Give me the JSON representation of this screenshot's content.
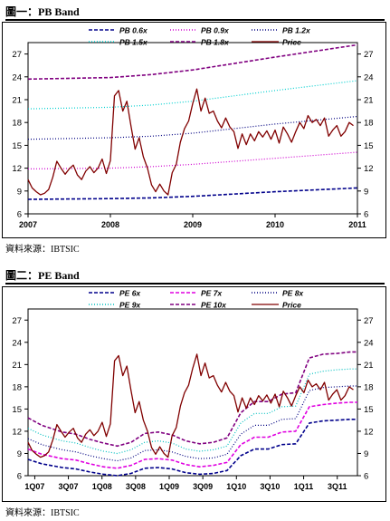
{
  "figure1": {
    "title": "圖一：PB Band",
    "source": "資料來源：IBTSIC",
    "chart_data": {
      "type": "line",
      "x_tick_labels": [
        "2007",
        "2008",
        "2009",
        "2010",
        "2011"
      ],
      "x_range": [
        2007.0,
        2011.0
      ],
      "ylim": [
        6,
        28.5
      ],
      "y_ticks": [
        6,
        9,
        12,
        15,
        18,
        21,
        24,
        27
      ],
      "legend": [
        "PB 0.6x",
        "PB 0.9x",
        "PB 1.2x",
        "PB 1.5x",
        "PB 1.8x",
        "Price"
      ],
      "series": [
        {
          "name": "PB 0.6x",
          "color": "#00008b",
          "style": "dash",
          "x": [
            2007.0,
            2008.0,
            2008.5,
            2009.0,
            2010.0,
            2011.0
          ],
          "y": [
            7.9,
            8.0,
            8.1,
            8.3,
            8.9,
            9.4
          ]
        },
        {
          "name": "PB 0.9x",
          "color": "#d000d0",
          "style": "dot",
          "x": [
            2007.0,
            2008.0,
            2008.5,
            2009.0,
            2010.0,
            2011.0
          ],
          "y": [
            11.9,
            12.0,
            12.2,
            12.5,
            13.3,
            14.1
          ]
        },
        {
          "name": "PB 1.2x",
          "color": "#000080",
          "style": "dot",
          "x": [
            2007.0,
            2008.0,
            2008.5,
            2009.0,
            2010.0,
            2011.0
          ],
          "y": [
            15.8,
            16.0,
            16.2,
            16.6,
            17.8,
            18.8
          ]
        },
        {
          "name": "PB 1.5x",
          "color": "#00d0d0",
          "style": "dot",
          "x": [
            2007.0,
            2008.0,
            2008.5,
            2009.0,
            2010.0,
            2011.0
          ],
          "y": [
            19.8,
            20.0,
            20.3,
            20.8,
            22.2,
            23.5
          ]
        },
        {
          "name": "PB 1.8x",
          "color": "#800080",
          "style": "dash",
          "x": [
            2007.0,
            2008.0,
            2008.5,
            2009.0,
            2010.0,
            2011.0
          ],
          "y": [
            23.7,
            23.9,
            24.3,
            24.9,
            26.6,
            28.2
          ]
        },
        {
          "name": "Price",
          "color": "#800000",
          "style": "solid",
          "x": [
            2007.0,
            2007.05,
            2007.1,
            2007.15,
            2007.2,
            2007.25,
            2007.3,
            2007.35,
            2007.4,
            2007.45,
            2007.5,
            2007.55,
            2007.6,
            2007.65,
            2007.7,
            2007.75,
            2007.8,
            2007.85,
            2007.9,
            2007.95,
            2008.0,
            2008.05,
            2008.1,
            2008.15,
            2008.2,
            2008.25,
            2008.3,
            2008.35,
            2008.4,
            2008.45,
            2008.5,
            2008.55,
            2008.6,
            2008.65,
            2008.7,
            2008.75,
            2008.8,
            2008.85,
            2008.9,
            2008.95,
            2009.0,
            2009.05,
            2009.1,
            2009.15,
            2009.2,
            2009.25,
            2009.3,
            2009.35,
            2009.4,
            2009.45,
            2009.5,
            2009.55,
            2009.6,
            2009.65,
            2009.7,
            2009.75,
            2009.8,
            2009.85,
            2009.9,
            2009.95,
            2010.0,
            2010.05,
            2010.1,
            2010.15,
            2010.2,
            2010.25,
            2010.3,
            2010.35,
            2010.4,
            2010.45,
            2010.5,
            2010.55,
            2010.6,
            2010.65,
            2010.7,
            2010.75,
            2010.8,
            2010.85,
            2010.9,
            2010.95
          ],
          "y": [
            10.5,
            9.4,
            8.9,
            8.5,
            8.7,
            9.2,
            10.8,
            12.9,
            12.0,
            11.2,
            11.9,
            12.4,
            11.1,
            10.5,
            11.6,
            12.2,
            11.4,
            12.0,
            13.2,
            11.3,
            13.0,
            21.5,
            22.2,
            19.5,
            20.8,
            17.5,
            14.5,
            16.0,
            13.5,
            12.0,
            9.8,
            8.9,
            9.9,
            9.0,
            8.5,
            11.4,
            12.5,
            15.4,
            17.2,
            18.2,
            20.5,
            22.4,
            19.5,
            21.2,
            19.2,
            19.5,
            18.2,
            17.3,
            18.6,
            17.4,
            16.8,
            14.6,
            16.5,
            15.1,
            16.5,
            15.6,
            16.8,
            16.1,
            16.9,
            15.8,
            17.0,
            15.3,
            17.4,
            16.5,
            15.4,
            16.8,
            18.0,
            17.2,
            18.9,
            18.0,
            18.4,
            17.6,
            18.6,
            16.2,
            17.0,
            17.6,
            16.2,
            16.8,
            18.0,
            17.6
          ]
        }
      ]
    }
  },
  "figure2": {
    "title": "圖二：PE Band",
    "source": "資料來源：IBTSIC",
    "chart_data": {
      "type": "line",
      "x_tick_labels": [
        "1Q07",
        "3Q07",
        "1Q08",
        "3Q08",
        "1Q09",
        "3Q09",
        "1Q10",
        "3Q10",
        "1Q11",
        "3Q11"
      ],
      "x_range": [
        2007.0,
        2011.8
      ],
      "ylim": [
        6,
        28.5
      ],
      "y_ticks": [
        6,
        9,
        12,
        15,
        18,
        21,
        24,
        27
      ],
      "legend": [
        "PE 6x",
        "PE 7x",
        "PE 8x",
        "PE 9x",
        "PE 10x",
        "Price"
      ],
      "series": [
        {
          "name": "PE 6x",
          "color": "#00008b",
          "style": "dash",
          "x": [
            2007.0,
            2007.2,
            2007.5,
            2007.7,
            2007.9,
            2008.1,
            2008.3,
            2008.5,
            2008.7,
            2008.9,
            2009.1,
            2009.3,
            2009.5,
            2009.7,
            2009.9,
            2010.1,
            2010.3,
            2010.5,
            2010.7,
            2010.9,
            2011.1,
            2011.3,
            2011.5,
            2011.7,
            2011.8
          ],
          "y": [
            8.2,
            7.6,
            7.1,
            6.9,
            6.5,
            6.2,
            6.0,
            6.3,
            7.0,
            7.1,
            6.9,
            6.4,
            6.2,
            6.3,
            6.7,
            8.7,
            9.6,
            9.6,
            10.2,
            10.3,
            13.1,
            13.4,
            13.5,
            13.6,
            13.6
          ]
        },
        {
          "name": "PE 7x",
          "color": "#e000e0",
          "style": "dash",
          "x": [
            2007.0,
            2007.2,
            2007.5,
            2007.7,
            2007.9,
            2008.1,
            2008.3,
            2008.5,
            2008.7,
            2008.9,
            2009.1,
            2009.3,
            2009.5,
            2009.7,
            2009.9,
            2010.1,
            2010.3,
            2010.5,
            2010.7,
            2010.9,
            2011.1,
            2011.3,
            2011.5,
            2011.7,
            2011.8
          ],
          "y": [
            9.6,
            8.9,
            8.3,
            8.1,
            7.6,
            7.2,
            7.0,
            7.4,
            8.2,
            8.3,
            8.1,
            7.5,
            7.2,
            7.4,
            7.8,
            10.2,
            11.2,
            11.2,
            11.9,
            12.0,
            15.3,
            15.6,
            15.8,
            15.9,
            15.9
          ]
        },
        {
          "name": "PE 8x",
          "color": "#000080",
          "style": "dot",
          "x": [
            2007.0,
            2007.2,
            2007.5,
            2007.7,
            2007.9,
            2008.1,
            2008.3,
            2008.5,
            2008.7,
            2008.9,
            2009.1,
            2009.3,
            2009.5,
            2009.7,
            2009.9,
            2010.1,
            2010.3,
            2010.5,
            2010.7,
            2010.9,
            2011.1,
            2011.3,
            2011.5,
            2011.7,
            2011.8
          ],
          "y": [
            11.0,
            10.2,
            9.5,
            9.2,
            8.7,
            8.3,
            8.0,
            8.4,
            9.4,
            9.5,
            9.2,
            8.6,
            8.3,
            8.4,
            8.9,
            11.6,
            12.8,
            12.8,
            13.6,
            13.7,
            17.5,
            17.9,
            18.0,
            18.1,
            18.1
          ]
        },
        {
          "name": "PE 9x",
          "color": "#00c0c0",
          "style": "dot",
          "x": [
            2007.0,
            2007.2,
            2007.5,
            2007.7,
            2007.9,
            2008.1,
            2008.3,
            2008.5,
            2008.7,
            2008.9,
            2009.1,
            2009.3,
            2009.5,
            2009.7,
            2009.9,
            2010.1,
            2010.3,
            2010.5,
            2010.7,
            2010.9,
            2011.1,
            2011.3,
            2011.5,
            2011.7,
            2011.8
          ],
          "y": [
            12.4,
            11.5,
            10.7,
            10.4,
            9.8,
            9.3,
            9.0,
            9.5,
            10.5,
            10.7,
            10.4,
            9.6,
            9.3,
            9.5,
            10.0,
            13.1,
            14.4,
            14.4,
            15.3,
            15.4,
            19.7,
            20.1,
            20.3,
            20.4,
            20.4
          ]
        },
        {
          "name": "PE 10x",
          "color": "#800080",
          "style": "dash",
          "x": [
            2007.0,
            2007.2,
            2007.5,
            2007.7,
            2007.9,
            2008.1,
            2008.3,
            2008.5,
            2008.7,
            2008.9,
            2009.1,
            2009.3,
            2009.5,
            2009.7,
            2009.9,
            2010.1,
            2010.3,
            2010.5,
            2010.7,
            2010.9,
            2011.1,
            2011.3,
            2011.5,
            2011.7,
            2011.8
          ],
          "y": [
            13.8,
            12.8,
            11.9,
            11.6,
            10.9,
            10.4,
            10.0,
            10.5,
            11.7,
            11.9,
            11.5,
            10.7,
            10.3,
            10.5,
            11.1,
            14.5,
            16.0,
            16.0,
            17.0,
            17.2,
            21.9,
            22.4,
            22.5,
            22.7,
            22.7
          ]
        },
        {
          "name": "Price",
          "color": "#800000",
          "style": "solid",
          "x": [
            2007.0,
            2007.06,
            2007.12,
            2007.18,
            2007.24,
            2007.3,
            2007.36,
            2007.42,
            2007.48,
            2007.54,
            2007.6,
            2007.66,
            2007.72,
            2007.78,
            2007.84,
            2007.9,
            2007.96,
            2008.02,
            2008.08,
            2008.14,
            2008.2,
            2008.26,
            2008.32,
            2008.38,
            2008.44,
            2008.5,
            2008.56,
            2008.62,
            2008.68,
            2008.74,
            2008.8,
            2008.86,
            2008.92,
            2008.98,
            2009.04,
            2009.1,
            2009.16,
            2009.22,
            2009.28,
            2009.34,
            2009.4,
            2009.46,
            2009.52,
            2009.58,
            2009.64,
            2009.7,
            2009.76,
            2009.82,
            2009.88,
            2009.94,
            2010.0,
            2010.06,
            2010.12,
            2010.18,
            2010.24,
            2010.3,
            2010.36,
            2010.42,
            2010.48,
            2010.54,
            2010.6,
            2010.66,
            2010.72,
            2010.78,
            2010.84,
            2010.9,
            2010.96,
            2011.02,
            2011.08,
            2011.14,
            2011.2,
            2011.26,
            2011.32,
            2011.38,
            2011.44,
            2011.5,
            2011.56,
            2011.62,
            2011.68,
            2011.74
          ],
          "y": [
            10.5,
            9.4,
            8.9,
            8.5,
            8.7,
            9.2,
            10.8,
            12.9,
            12.0,
            11.2,
            11.9,
            12.4,
            11.1,
            10.5,
            11.6,
            12.2,
            11.4,
            12.0,
            13.2,
            11.3,
            13.0,
            21.5,
            22.2,
            19.5,
            20.8,
            17.5,
            14.5,
            16.0,
            13.5,
            12.0,
            9.8,
            8.9,
            9.9,
            9.0,
            8.5,
            11.4,
            12.5,
            15.4,
            17.2,
            18.2,
            20.5,
            22.4,
            19.5,
            21.2,
            19.2,
            19.5,
            18.2,
            17.3,
            18.6,
            17.4,
            16.8,
            14.6,
            16.5,
            15.1,
            16.5,
            15.6,
            16.8,
            16.1,
            16.9,
            15.8,
            17.0,
            15.3,
            17.4,
            16.5,
            15.4,
            16.8,
            18.0,
            17.2,
            18.9,
            18.0,
            18.4,
            17.6,
            18.6,
            16.2,
            17.0,
            17.6,
            16.2,
            16.8,
            18.0,
            17.6
          ]
        }
      ]
    }
  }
}
